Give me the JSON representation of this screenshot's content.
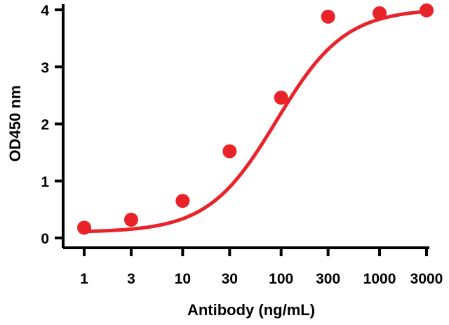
{
  "chart_data": {
    "type": "scatter",
    "title": "",
    "xlabel": "Antibody (ng/mL)",
    "ylabel": "OD450 nm",
    "x_scale": "log",
    "x_ticks": [
      1,
      3,
      10,
      30,
      100,
      300,
      1000,
      3000
    ],
    "x_tick_labels": [
      "1",
      "3",
      "10",
      "30",
      "100",
      "300",
      "1000",
      "3000"
    ],
    "y_ticks": [
      0,
      1,
      2,
      3,
      4
    ],
    "y_tick_labels": [
      "0",
      "1",
      "2",
      "3",
      "4"
    ],
    "ylim": [
      0,
      4
    ],
    "grid": false,
    "legend": "none",
    "color": "#e8232a",
    "series": [
      {
        "x": [
          1,
          3,
          10,
          30,
          100,
          300,
          1000,
          3000
        ],
        "y": [
          0.18,
          0.32,
          0.65,
          1.52,
          2.46,
          3.88,
          3.94,
          3.99
        ],
        "fit_curve": "4PL sigmoid"
      }
    ]
  }
}
